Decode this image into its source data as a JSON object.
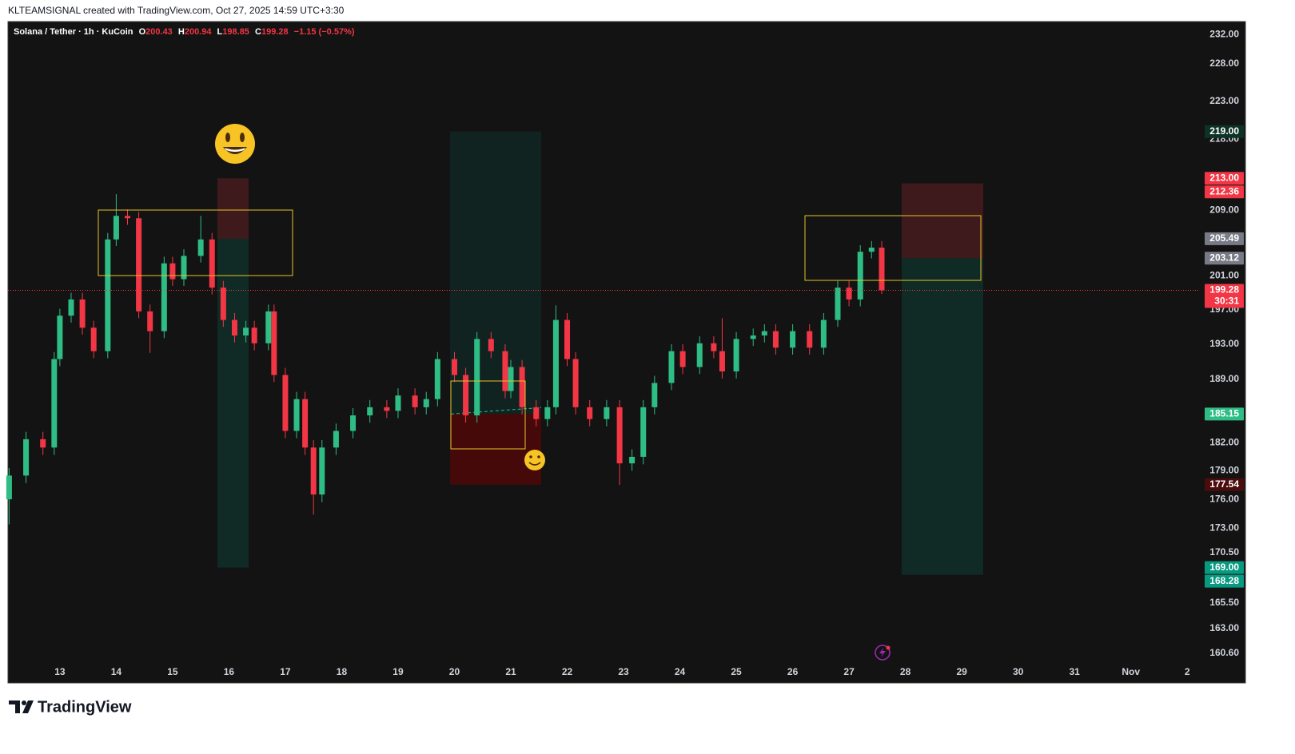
{
  "header": {
    "credit": "KLTEAMSIGNAL created with TradingView.com, Oct 27, 2025 14:59 UTC+3:30"
  },
  "footer": {
    "brand": "TradingView"
  },
  "chart_data": {
    "type": "candlestick",
    "symbol": "Solana / Tether · 1h · KuCoin",
    "ohlc_legend": [
      {
        "label": "O",
        "value": 200.43
      },
      {
        "label": "H",
        "value": 200.94
      },
      {
        "label": "L",
        "value": 198.85
      },
      {
        "label": "C",
        "value": 199.28
      }
    ],
    "change": "−1.15 (−0.57%)",
    "up_color": "#2ebd85",
    "down_color": "#f23645",
    "log": true,
    "grid": false,
    "xlim": [
      12.08,
      33.21
    ],
    "xticks": [
      13,
      14,
      15,
      16,
      17,
      18,
      19,
      20,
      21,
      22,
      23,
      24,
      25,
      26,
      27,
      28,
      29,
      30,
      31,
      {
        "value": 32,
        "label": "Nov"
      },
      {
        "value": 33,
        "label": "2"
      }
    ],
    "ylim": [
      157.8,
      233.8
    ],
    "yticks": [
      {
        "value": 160.6,
        "label": "160.60"
      },
      {
        "value": 163,
        "label": "163.00"
      },
      {
        "value": 165.5,
        "label": "165.50"
      },
      {
        "value": 170.5,
        "label": "170.50"
      },
      {
        "value": 173,
        "label": "173.00"
      },
      {
        "value": 176,
        "label": "176.00"
      },
      {
        "value": 179,
        "label": "179.00"
      },
      {
        "value": 182,
        "label": "182.00"
      },
      {
        "value": 189,
        "label": "189.00"
      },
      {
        "value": 193,
        "label": "193.00"
      },
      {
        "value": 197,
        "label": "197.00"
      },
      {
        "value": 201,
        "label": "201.00"
      },
      {
        "value": 209,
        "label": "209.00"
      },
      {
        "value": 218,
        "label": "218.00"
      },
      {
        "value": 223,
        "label": "223.00"
      },
      {
        "value": 228,
        "label": "228.00"
      },
      {
        "value": 232,
        "label": "232.00"
      }
    ],
    "x": [
      12.1,
      12.4,
      12.7,
      12.9,
      13.0,
      13.2,
      13.4,
      13.6,
      13.85,
      14.0,
      14.2,
      14.4,
      14.6,
      14.85,
      15.0,
      15.2,
      15.5,
      15.7,
      15.9,
      16.1,
      16.3,
      16.45,
      16.7,
      16.8,
      17.0,
      17.2,
      17.35,
      17.5,
      17.65,
      17.9,
      18.2,
      18.5,
      18.8,
      19.0,
      19.3,
      19.5,
      19.7,
      20.0,
      20.2,
      20.4,
      20.65,
      20.9,
      21.0,
      21.2,
      21.45,
      21.65,
      21.8,
      22.0,
      22.15,
      22.4,
      22.7,
      22.93,
      23.15,
      23.35,
      23.55,
      23.85,
      24.05,
      24.35,
      24.6,
      24.75,
      25.0,
      25.3,
      25.5,
      25.7,
      26.0,
      26.3,
      26.55,
      26.8,
      27.0,
      27.2,
      27.4,
      27.58
    ],
    "open": [
      176.0,
      178.5,
      182.4,
      181.5,
      191.3,
      196.3,
      198.2,
      194.9,
      192.2,
      205.4,
      208.3,
      208.0,
      196.8,
      194.5,
      202.5,
      200.6,
      203.4,
      205.4,
      199.6,
      195.8,
      194.0,
      194.9,
      193.1,
      196.8,
      189.5,
      183.3,
      186.8,
      181.5,
      176.5,
      181.5,
      183.3,
      185.0,
      185.9,
      185.5,
      187.2,
      185.9,
      186.8,
      191.3,
      189.5,
      185.0,
      193.6,
      192.2,
      187.7,
      190.4,
      185.9,
      184.6,
      185.9,
      195.8,
      191.3,
      185.9,
      184.6,
      185.9,
      179.8,
      180.5,
      185.9,
      188.6,
      192.2,
      190.4,
      193.1,
      192.2,
      189.9,
      193.6,
      194.0,
      194.5,
      192.6,
      194.5,
      192.6,
      195.8,
      199.6,
      198.2,
      203.9,
      204.4
    ],
    "high": [
      179.3,
      183.2,
      183.2,
      192.1,
      197.1,
      199.0,
      199.0,
      195.7,
      206.2,
      211.0,
      209.1,
      208.8,
      197.6,
      203.3,
      203.3,
      204.2,
      208.3,
      206.2,
      200.4,
      196.6,
      195.7,
      195.7,
      197.6,
      197.6,
      190.3,
      187.6,
      187.6,
      182.3,
      182.3,
      184.1,
      185.8,
      186.7,
      186.7,
      188.0,
      188.0,
      187.6,
      192.1,
      192.1,
      190.3,
      194.4,
      194.4,
      193.0,
      191.2,
      191.2,
      186.7,
      186.7,
      197.5,
      196.6,
      192.1,
      186.7,
      186.7,
      186.7,
      181.3,
      186.7,
      189.4,
      193.0,
      193.0,
      193.9,
      193.9,
      196.0,
      194.4,
      194.8,
      195.3,
      195.3,
      195.3,
      195.3,
      196.6,
      200.4,
      200.4,
      204.7,
      205.2,
      205.2
    ],
    "low": [
      173.4,
      177.7,
      180.7,
      180.7,
      190.5,
      195.5,
      194.1,
      191.4,
      191.4,
      204.6,
      207.2,
      196.0,
      192.0,
      193.7,
      199.8,
      199.8,
      202.6,
      198.8,
      195.0,
      193.2,
      193.2,
      192.3,
      192.3,
      188.7,
      182.5,
      182.5,
      180.7,
      174.4,
      175.7,
      180.7,
      182.5,
      184.2,
      184.7,
      184.7,
      185.1,
      185.1,
      186.0,
      188.7,
      184.2,
      184.2,
      191.4,
      186.9,
      186.9,
      185.1,
      183.8,
      183.8,
      185.1,
      190.5,
      185.1,
      183.8,
      183.8,
      177.5,
      179.0,
      179.7,
      185.1,
      187.8,
      189.6,
      189.6,
      191.4,
      189.1,
      189.1,
      192.8,
      193.2,
      191.8,
      191.8,
      191.8,
      191.8,
      195.0,
      197.4,
      197.4,
      203.1,
      198.85
    ],
    "close": [
      178.5,
      182.4,
      181.5,
      191.3,
      196.3,
      198.2,
      194.9,
      192.2,
      205.4,
      208.3,
      208.0,
      196.8,
      194.5,
      202.5,
      200.6,
      203.4,
      205.4,
      199.6,
      195.8,
      194.0,
      194.9,
      193.1,
      196.8,
      189.5,
      183.3,
      186.8,
      181.5,
      176.5,
      181.5,
      183.3,
      185.0,
      185.9,
      185.5,
      187.2,
      185.9,
      186.8,
      191.3,
      189.5,
      185.0,
      193.6,
      192.2,
      187.7,
      190.4,
      185.9,
      184.6,
      185.9,
      195.8,
      191.3,
      185.9,
      184.6,
      185.9,
      179.8,
      180.5,
      185.9,
      188.6,
      192.2,
      190.4,
      193.1,
      192.2,
      189.9,
      193.6,
      194.0,
      194.5,
      192.6,
      194.5,
      192.6,
      195.8,
      199.6,
      198.2,
      203.9,
      204.4,
      199.28
    ],
    "price_tags": [
      {
        "value": 219,
        "label": "219.00",
        "color": "#0d3326"
      },
      {
        "value": 213,
        "label": "213.00",
        "color": "#f23645"
      },
      {
        "value": 212.36,
        "label": "212.36",
        "color": "#f23645"
      },
      {
        "value": 205.49,
        "label": "205.49",
        "color": "#787b86"
      },
      {
        "value": 203.12,
        "label": "203.12",
        "color": "#787b86"
      },
      {
        "value": 199.28,
        "label": "199.28",
        "color": "#f23645",
        "countdown": "30:31"
      },
      {
        "value": 185.15,
        "label": "185.15",
        "color": "#2ebd85"
      },
      {
        "value": 177.54,
        "label": "177.54",
        "color": "#4a0c0c"
      },
      {
        "value": 169,
        "label": "169.00",
        "color": "#089981"
      },
      {
        "value": 168.28,
        "label": "168.28",
        "color": "#089981"
      }
    ]
  }
}
